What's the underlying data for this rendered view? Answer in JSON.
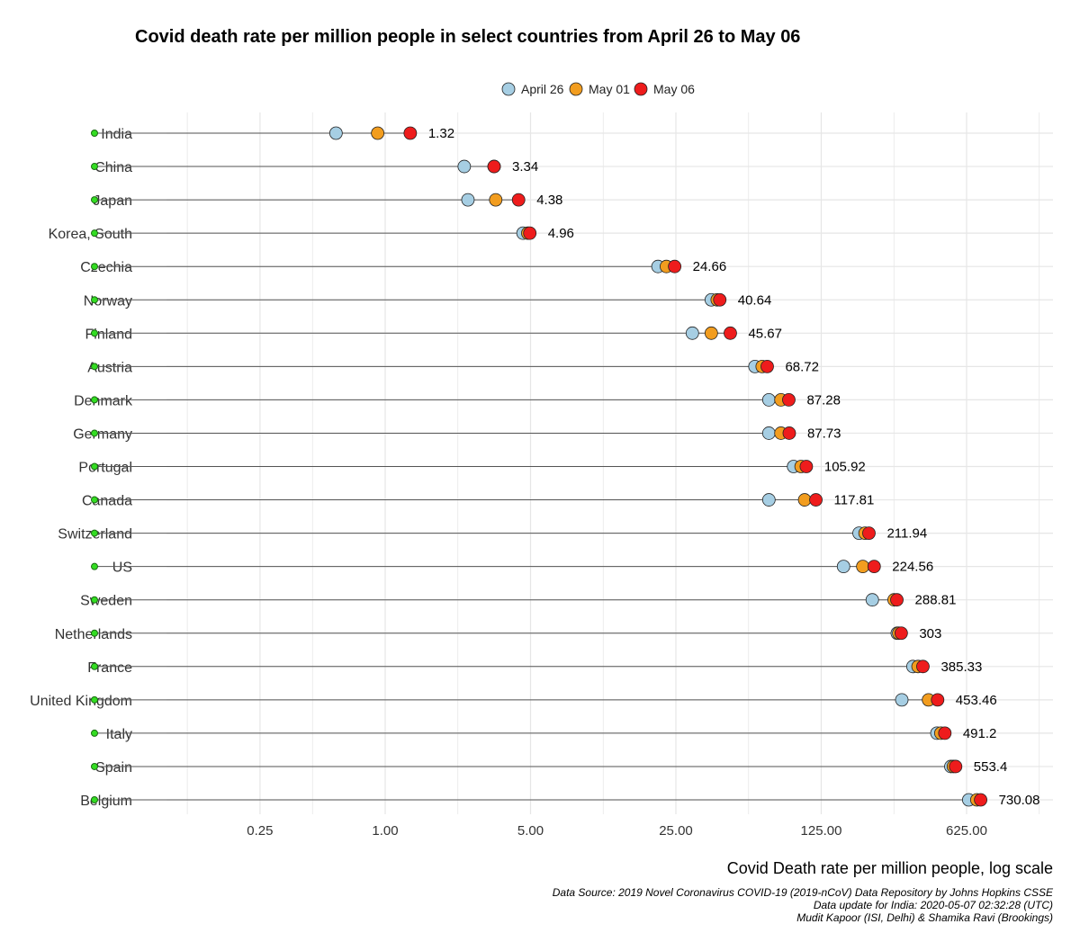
{
  "chart_data": {
    "type": "scatter",
    "title": "Covid death rate per million people in select countries from April 26 to May 06",
    "xlabel": "Covid Death rate per million people, log scale",
    "ylabel": "",
    "x_scale": "log",
    "xlim": [
      0.04,
      1000
    ],
    "x_ticks": [
      0.25,
      1.0,
      5.0,
      25.0,
      125.0,
      625.0
    ],
    "x_tick_labels": [
      "0.25",
      "1.00",
      "5.00",
      "25.00",
      "125.00",
      "625.00"
    ],
    "baseline_value": 0.04,
    "legend": {
      "position": "top",
      "entries": [
        {
          "name": "April 26",
          "color": "#a6cee3"
        },
        {
          "name": "May 01",
          "color": "#f29d1f"
        },
        {
          "name": "May 06",
          "color": "#ee1c1c"
        }
      ]
    },
    "colors": {
      "april26": "#a6cee3",
      "may01": "#f29d1f",
      "may06": "#ee1c1c",
      "baseline": "#33dd22",
      "segment": "#555555",
      "grid": "#e6e6e6"
    },
    "categories": [
      "India",
      "China",
      "Japan",
      "Korea, South",
      "Czechia",
      "Norway",
      "Finland",
      "Austria",
      "Denmark",
      "Germany",
      "Portugal",
      "Canada",
      "Switzerland",
      "US",
      "Sweden",
      "Netherlands",
      "France",
      "United Kingdom",
      "Italy",
      "Spain",
      "Belgium"
    ],
    "series": [
      {
        "name": "April 26",
        "values": [
          0.58,
          2.4,
          2.5,
          4.6,
          20.5,
          37.0,
          30.0,
          60.0,
          70.0,
          70.0,
          92.0,
          70.0,
          190.0,
          160.0,
          220.0,
          290.0,
          345.0,
          305.0,
          450.0,
          525.0,
          640.0
        ]
      },
      {
        "name": "May 01",
        "values": [
          0.92,
          3.34,
          3.4,
          4.85,
          22.5,
          39.5,
          37.0,
          65.0,
          80.0,
          80.0,
          100.0,
          104.0,
          203.0,
          198.0,
          280.0,
          295.0,
          365.0,
          410.0,
          470.0,
          540.0,
          700.0
        ]
      },
      {
        "name": "May 06",
        "values": [
          1.32,
          3.34,
          4.38,
          4.96,
          24.66,
          40.64,
          45.67,
          68.72,
          87.28,
          87.73,
          105.92,
          117.81,
          211.94,
          224.56,
          288.81,
          303,
          385.33,
          453.46,
          491.2,
          553.4,
          730.08
        ]
      }
    ],
    "value_labels": [
      "1.32",
      "3.34",
      "4.38",
      "4.96",
      "24.66",
      "40.64",
      "45.67",
      "68.72",
      "87.28",
      "87.73",
      "105.92",
      "117.81",
      "211.94",
      "224.56",
      "288.81",
      "303",
      "385.33",
      "453.46",
      "491.2",
      "553.4",
      "730.08"
    ]
  },
  "captions": [
    "Data Source: 2019 Novel Coronavirus COVID-19 (2019-nCoV) Data Repository by Johns Hopkins CSSE",
    "Data update for India: 2020-05-07 02:32:28 (UTC)",
    "Mudit Kapoor (ISI, Delhi) & Shamika Ravi (Brookings)"
  ]
}
